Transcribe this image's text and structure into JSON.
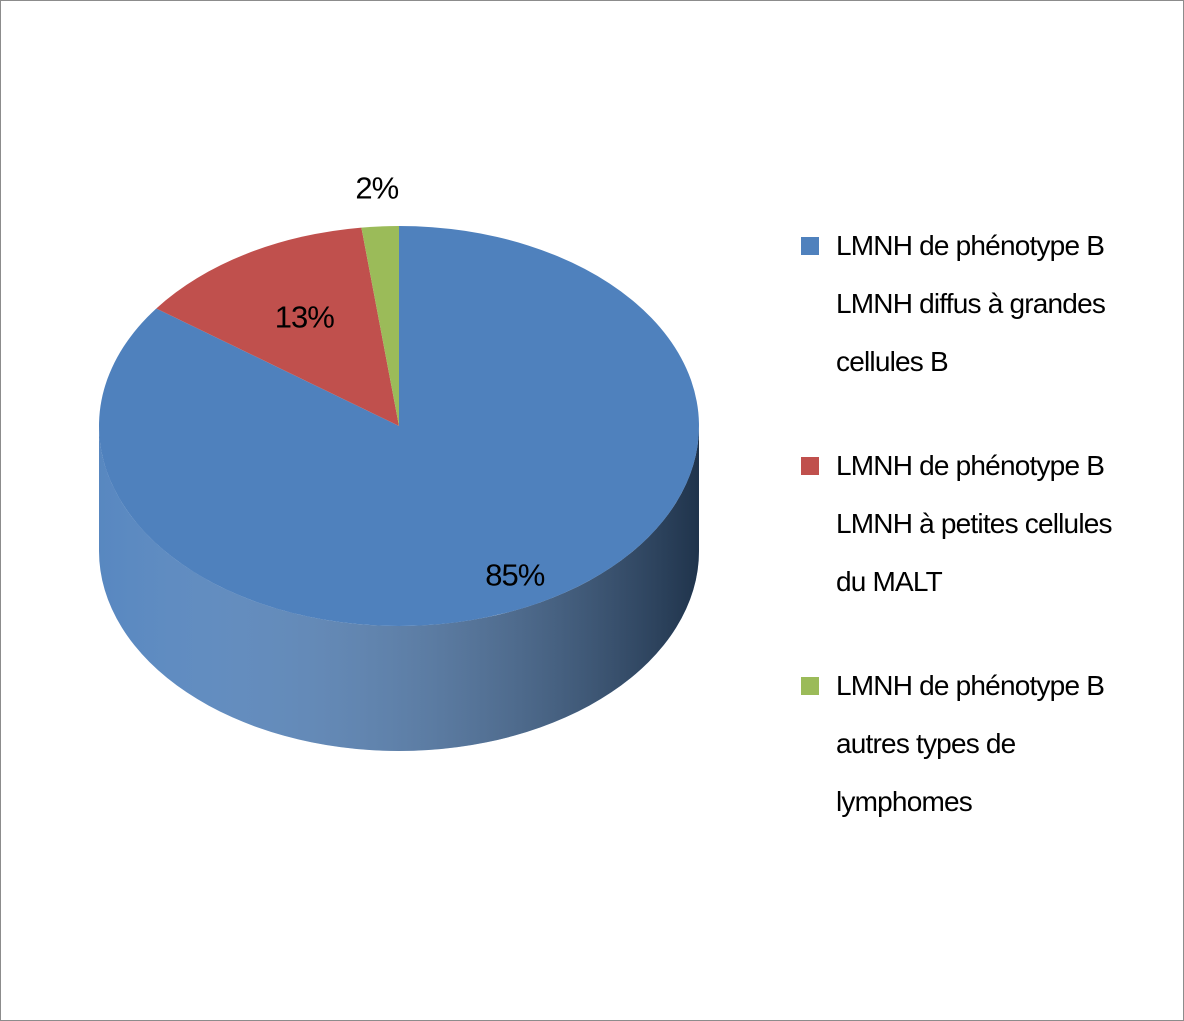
{
  "chart_data": {
    "type": "pie",
    "categories": [
      "LMNH de phénotype B LMNH diffus à grandes cellules B",
      "LMNH de phénotype B LMNH à petites cellules du MALT",
      "LMNH de phénotype B autres types de lymphomes"
    ],
    "values": [
      85,
      13,
      2
    ],
    "value_labels": [
      "85%",
      "13%",
      "2%"
    ],
    "colors": [
      "#4f81bd",
      "#c0504d",
      "#9bbb59"
    ],
    "legend": "right"
  }
}
